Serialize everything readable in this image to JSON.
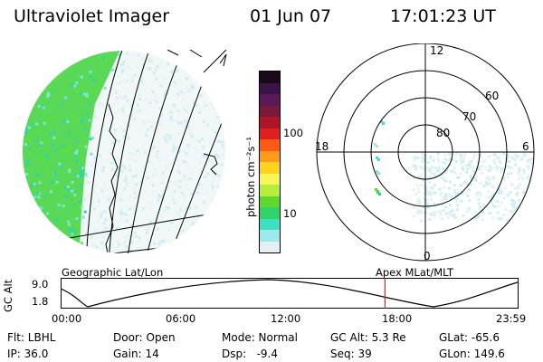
{
  "header": {
    "title": "Ultraviolet Imager",
    "date": "01 Jun 07",
    "time": "17:01:23 UT"
  },
  "colorbar": {
    "unit_label": "photon cm⁻²s⁻¹",
    "ticks": [
      "100",
      "10"
    ],
    "colors": [
      "#1a0a1a",
      "#3a1446",
      "#5a1a5a",
      "#7a1a3a",
      "#b01428",
      "#e01f1f",
      "#ff5a14",
      "#ff9a1a",
      "#ffd21e",
      "#f7f55a",
      "#b7ee3c",
      "#5fd82e",
      "#2fd36a",
      "#3fe0c2",
      "#9de9ee",
      "#e4f0f4"
    ]
  },
  "left_map": {
    "caption": "Geographic Lat/Lon"
  },
  "right_map": {
    "caption": "Apex MLat/MLT",
    "mlt_labels": {
      "top": "12",
      "left": "18",
      "right": "6",
      "bottom": "0"
    },
    "lat_labels": [
      "60",
      "70",
      "80"
    ]
  },
  "altitude_plot": {
    "ylabel": "GC Alt",
    "yticks": [
      "9.0",
      "1.8"
    ],
    "xticks": [
      "00:00",
      "06:00",
      "12:00",
      "18:00",
      "23:59"
    ],
    "current_time_hours": 17.02
  },
  "status": {
    "row1": [
      {
        "text": "Flt: LBHL"
      },
      {
        "text": "Door: Open"
      },
      {
        "text": "Mode: Normal"
      },
      {
        "text": "GC Alt: 5.3 Re"
      },
      {
        "text": "GLat: -65.6"
      }
    ],
    "row2": [
      {
        "text": "IP: 36.0"
      },
      {
        "text": "Gain: 14"
      },
      {
        "text": "Dsp:   -9.4"
      },
      {
        "text": "Seq: 39"
      },
      {
        "text": "GLon: 149.6"
      }
    ]
  }
}
